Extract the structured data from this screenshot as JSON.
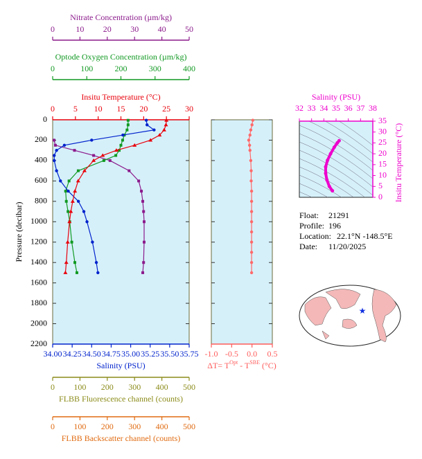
{
  "chart_data": [
    {
      "type": "profile",
      "ylabel": "Pressure (decibar)",
      "ylim": [
        0,
        2200
      ],
      "y_reversed": true,
      "yticks": [
        0,
        200,
        400,
        600,
        800,
        1000,
        1200,
        1400,
        1600,
        1800,
        2000,
        2200
      ],
      "ytick_labels": true,
      "background": "#d6f0fa",
      "axes": [
        {
          "id": "temperature",
          "label": "Insitu Temperature (°C)",
          "color": "#e8000b",
          "position": "top",
          "xlim": [
            0,
            30
          ],
          "xticks": [
            0,
            5,
            10,
            15,
            20,
            25,
            30
          ]
        },
        {
          "id": "oxygen",
          "label": "Optode Oxygen Concentration (µm/kg)",
          "color": "#119922",
          "position": "top",
          "xlim": [
            0,
            400
          ],
          "xticks": [
            0,
            100,
            200,
            300,
            400
          ]
        },
        {
          "id": "nitrate",
          "label": "Nitrate Concentration (µm/kg)",
          "color": "#8b1a8b",
          "position": "top",
          "xlim": [
            0,
            50
          ],
          "xticks": [
            0,
            10,
            20,
            30,
            40,
            50
          ]
        },
        {
          "id": "salinity",
          "label": "Salinity (PSU)",
          "color": "#0022cc",
          "position": "bottom",
          "xlim": [
            34,
            35.75
          ],
          "xticks": [
            {
              "value": 34,
              "label": "34.00"
            },
            {
              "value": 34.25,
              "label": "34.25"
            },
            {
              "value": 34.5,
              "label": "34.50"
            },
            {
              "value": 34.75,
              "label": "34.75"
            },
            {
              "value": 35,
              "label": "35.00"
            },
            {
              "value": 35.25,
              "label": "35.25"
            },
            {
              "value": 35.5,
              "label": "35.50"
            },
            {
              "value": 35.75,
              "label": "35.75"
            }
          ]
        },
        {
          "id": "fluorescence",
          "label": "FLBB Fluorescence channel (counts)",
          "color": "#8b8b1a",
          "position": "bottom",
          "xlim": [
            0,
            500
          ],
          "xticks": [
            0,
            100,
            200,
            300,
            400,
            500
          ]
        },
        {
          "id": "backscatter",
          "label": "FLBB Backscatter channel (counts)",
          "color": "#e06a10",
          "position": "bottom",
          "xlim": [
            0,
            500
          ],
          "xticks": [
            0,
            100,
            200,
            300,
            400,
            500
          ]
        }
      ],
      "series": [
        {
          "axis": "nitrate",
          "color": "#8b1a8b",
          "marker": "square",
          "pressure": [
            200,
            250,
            300,
            350,
            400,
            500,
            600,
            700,
            800,
            900,
            1000,
            1200,
            1400,
            1500
          ],
          "values": [
            0.5,
            1,
            8,
            15,
            21,
            28,
            31.5,
            32.5,
            33,
            33.3,
            33.5,
            33.5,
            33.3,
            33
          ]
        },
        {
          "axis": "oxygen",
          "color": "#119922",
          "marker": "square",
          "pressure": [
            5,
            50,
            100,
            150,
            200,
            250,
            300,
            350,
            400,
            500,
            600,
            700,
            800,
            900,
            1000,
            1200,
            1400,
            1500
          ],
          "values": [
            221,
            221,
            218,
            210,
            205,
            200,
            195,
            185,
            150,
            75,
            48,
            38,
            40,
            45,
            50,
            56,
            65,
            71
          ]
        },
        {
          "axis": "salinity",
          "color": "#0022cc",
          "marker": "circle",
          "pressure": [
            5,
            50,
            100,
            150,
            200,
            250,
            300,
            350,
            400,
            500,
            600,
            700,
            800,
            900,
            1000,
            1200,
            1400,
            1500
          ],
          "values": [
            35.2,
            35.21,
            35.3,
            34.9,
            34.5,
            34.15,
            34.05,
            34.02,
            34.02,
            34.05,
            34.1,
            34.2,
            34.33,
            34.4,
            34.44,
            34.51,
            34.56,
            34.58
          ]
        },
        {
          "axis": "temperature",
          "color": "#e8000b",
          "marker": "triangle",
          "pressure": [
            5,
            50,
            100,
            150,
            200,
            250,
            300,
            350,
            400,
            500,
            600,
            700,
            800,
            900,
            1000,
            1200,
            1400,
            1500
          ],
          "values": [
            25,
            24.9,
            24.5,
            23.5,
            21.5,
            18,
            14,
            11,
            9,
            7,
            5.6,
            4.9,
            4.4,
            4,
            3.7,
            3.3,
            3,
            2.8
          ]
        }
      ]
    },
    {
      "type": "profile",
      "ylim": [
        0,
        2200
      ],
      "y_reversed": true,
      "yticks": [
        0,
        200,
        400,
        600,
        800,
        1000,
        1200,
        1400,
        1600,
        1800,
        2000,
        2200
      ],
      "ytick_labels": false,
      "background": "#d6f0fa",
      "axes": [
        {
          "id": "dt",
          "label_parts": [
            "ΔT= T",
            "Opt",
            " - T",
            "SBE",
            " (°C)"
          ],
          "color": "#ff5a5a",
          "position": "bottom",
          "xlim": [
            -1,
            0.5
          ],
          "xticks": [
            {
              "value": -1,
              "label": "-1.0"
            },
            -0.5,
            {
              "value": 0,
              "label": "0.0"
            },
            0.5
          ]
        }
      ],
      "series": [
        {
          "axis": "dt",
          "color": "#ff6a6a",
          "marker": "circle",
          "pressure": [
            5,
            50,
            100,
            150,
            200,
            250,
            300,
            400,
            500,
            600,
            700,
            800,
            900,
            1000,
            1100,
            1200,
            1300,
            1400,
            1500
          ],
          "values": [
            0.02,
            0,
            -0.03,
            -0.05,
            -0.08,
            -0.06,
            -0.05,
            -0.03,
            -0.02,
            -0.02,
            -0.01,
            -0.01,
            -0.01,
            -0.01,
            -0.01,
            -0.01,
            -0.01,
            -0.01,
            -0.01
          ]
        }
      ]
    },
    {
      "type": "ts",
      "xlabel": "Salinity (PSU)",
      "ylabel": "Insitu Temperature (°C)",
      "color": "#ee00cc",
      "background": "#d6f0fa",
      "xlim": [
        32,
        38
      ],
      "xticks": [
        32,
        33,
        34,
        35,
        36,
        37,
        38
      ],
      "ylim": [
        0,
        35
      ],
      "yticks": [
        0,
        5,
        10,
        15,
        20,
        25,
        30,
        35
      ],
      "x": [
        34.7,
        34.45,
        34.25,
        34.15,
        34.15,
        34.3,
        34.55,
        34.85,
        35.1,
        35.25
      ],
      "values": [
        3,
        5,
        8,
        11,
        14,
        17,
        20,
        23,
        25,
        26
      ]
    }
  ],
  "info": [
    [
      "Float:",
      "21291"
    ],
    [
      "Profile:",
      "196"
    ],
    [
      "Location:",
      "22.1°N  -148.5°E"
    ],
    [
      "Date:",
      "11/20/2025"
    ]
  ]
}
